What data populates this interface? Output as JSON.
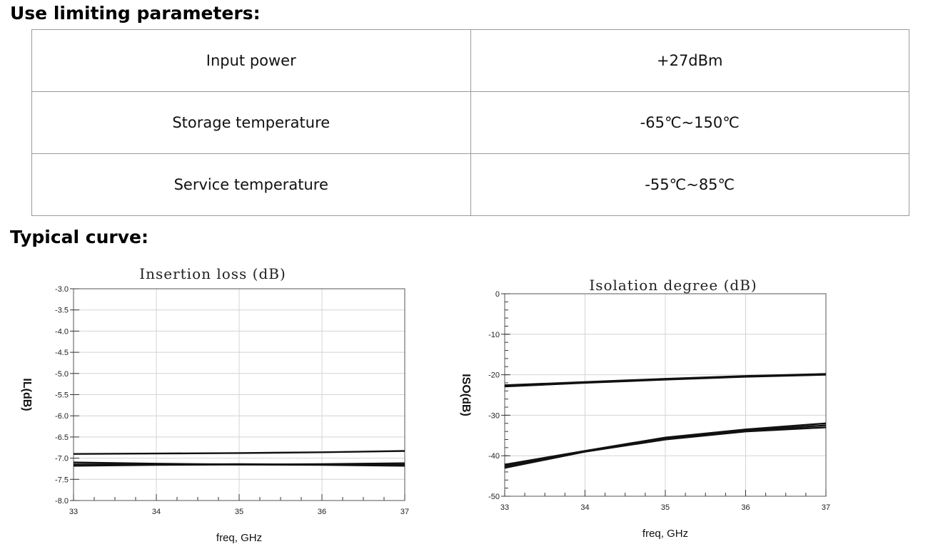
{
  "limiting": {
    "heading": "Use limiting parameters:",
    "rows": [
      {
        "param": "Input power",
        "value": "+27dBm"
      },
      {
        "param": "Storage temperature",
        "value": "-65℃~150℃"
      },
      {
        "param": "Service temperature",
        "value": "-55℃~85℃"
      }
    ]
  },
  "curve": {
    "heading": "Typical curve:"
  },
  "chart_data": [
    {
      "type": "line",
      "title": "Insertion loss (dB)",
      "xlabel": "freq, GHz",
      "ylabel": "IL(dB)",
      "xlim": [
        33,
        37
      ],
      "ylim": [
        -8.0,
        -3.0
      ],
      "x_ticks": [
        "33",
        "34",
        "35",
        "36",
        "37"
      ],
      "y_ticks": [
        "-3.0",
        "-3.5",
        "-4.0",
        "-4.5",
        "-5.0",
        "-5.5",
        "-6.0",
        "-6.5",
        "-7.0",
        "-7.5",
        "-8.0"
      ],
      "grid": true,
      "series": [
        {
          "x": [
            33,
            34,
            35,
            36,
            37
          ],
          "y": [
            -6.9,
            -6.89,
            -6.88,
            -6.86,
            -6.83
          ]
        },
        {
          "x": [
            33,
            34,
            35,
            36,
            37
          ],
          "y": [
            -7.1,
            -7.13,
            -7.15,
            -7.14,
            -7.12
          ]
        },
        {
          "x": [
            33,
            34,
            35,
            36,
            37
          ],
          "y": [
            -7.15,
            -7.15,
            -7.14,
            -7.15,
            -7.16
          ]
        },
        {
          "x": [
            33,
            34,
            35,
            36,
            37
          ],
          "y": [
            -7.18,
            -7.16,
            -7.15,
            -7.16,
            -7.18
          ]
        }
      ]
    },
    {
      "type": "line",
      "title": "Isolation degree (dB)",
      "xlabel": "freq, GHz",
      "ylabel": "ISO(dB)",
      "xlim": [
        33,
        37
      ],
      "ylim": [
        -50,
        0
      ],
      "x_ticks": [
        "33",
        "34",
        "35",
        "36",
        "37"
      ],
      "y_ticks": [
        "0",
        "-10",
        "-20",
        "-30",
        "-40",
        "-50"
      ],
      "grid": true,
      "series": [
        {
          "x": [
            33,
            34,
            35,
            36,
            37
          ],
          "y": [
            -22.6,
            -21.8,
            -21.0,
            -20.3,
            -19.8
          ]
        },
        {
          "x": [
            33,
            34,
            35,
            36,
            37
          ],
          "y": [
            -22.9,
            -22.0,
            -21.2,
            -20.5,
            -20.0
          ]
        },
        {
          "x": [
            33,
            34,
            35,
            36,
            37
          ],
          "y": [
            -42.2,
            -38.8,
            -35.5,
            -33.5,
            -32.0
          ]
        },
        {
          "x": [
            33,
            34,
            35,
            36,
            37
          ],
          "y": [
            -42.6,
            -38.9,
            -35.8,
            -33.8,
            -32.5
          ]
        },
        {
          "x": [
            33,
            34,
            35,
            36,
            37
          ],
          "y": [
            -43.0,
            -39.0,
            -36.0,
            -34.0,
            -33.0
          ]
        }
      ]
    }
  ]
}
